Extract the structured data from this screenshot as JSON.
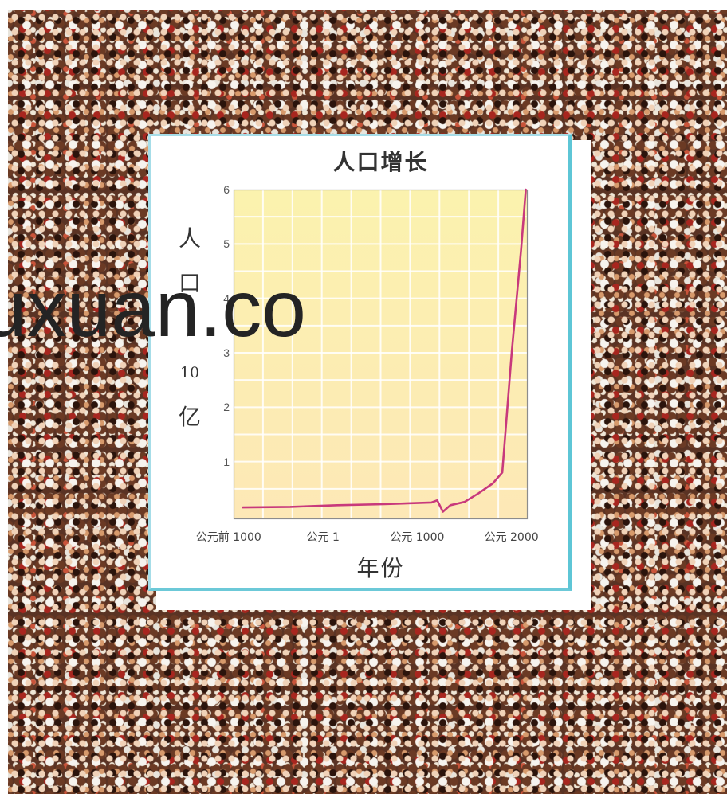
{
  "watermark": "uxuan.co",
  "colors": {
    "line": "#c8397c",
    "plot_background": "#fbf2ae",
    "panel_border": "#5ec6d6"
  },
  "chart_data": {
    "type": "line",
    "title": "人口增长",
    "xlabel": "年份",
    "ylabel": "人口/10亿",
    "x": [
      -1000,
      -500,
      1,
      500,
      1000,
      1060,
      1120,
      1200,
      1350,
      1500,
      1650,
      1750,
      1850,
      1950,
      2000
    ],
    "series": [
      {
        "values": [
          0.16,
          0.17,
          0.2,
          0.22,
          0.25,
          0.29,
          0.08,
          0.2,
          0.26,
          0.42,
          0.6,
          0.8,
          3.0,
          4.9,
          6.0
        ]
      }
    ],
    "xticks": [
      -1000,
      1,
      1000,
      2000
    ],
    "xtick_labels": [
      "公元前 1000",
      "公元 1",
      "公元 1000",
      "公元 2000"
    ],
    "yticks": [
      1,
      2,
      3,
      4,
      5,
      6
    ],
    "xlim": [
      -1100,
      2020
    ],
    "ylim": [
      0,
      6
    ],
    "grid": true
  }
}
